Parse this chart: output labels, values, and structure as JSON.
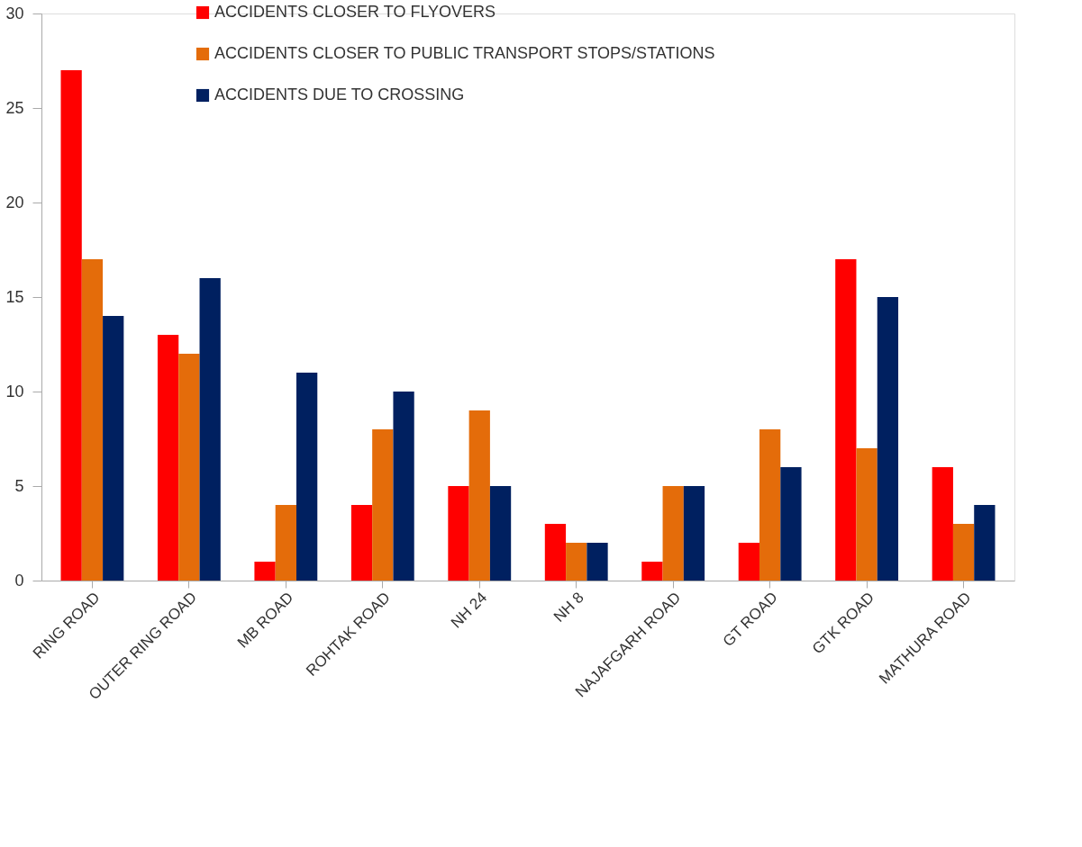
{
  "chart_data": {
    "type": "bar",
    "categories": [
      "RING ROAD",
      "OUTER RING ROAD",
      "MB ROAD",
      "ROHTAK ROAD",
      "NH 24",
      "NH 8",
      "NAJAFGARH ROAD",
      "GT ROAD",
      "GTK ROAD",
      "MATHURA ROAD"
    ],
    "series": [
      {
        "name": "ACCIDENTS CLOSER TO FLYOVERS",
        "color": "#ff0000",
        "values": [
          27,
          13,
          1,
          4,
          5,
          3,
          1,
          2,
          17,
          6
        ]
      },
      {
        "name": "ACCIDENTS CLOSER TO PUBLIC TRANSPORT STOPS/STATIONS",
        "color": "#e46c0a",
        "values": [
          17,
          12,
          4,
          8,
          9,
          2,
          5,
          8,
          7,
          3
        ]
      },
      {
        "name": "ACCIDENTS DUE TO CROSSING",
        "color": "#002060",
        "values": [
          14,
          16,
          11,
          10,
          5,
          2,
          5,
          6,
          15,
          4
        ]
      }
    ],
    "ylim": [
      0,
      30
    ],
    "yticks": [
      0,
      5,
      10,
      15,
      20,
      25,
      30
    ],
    "grid": false,
    "legend": "top"
  }
}
